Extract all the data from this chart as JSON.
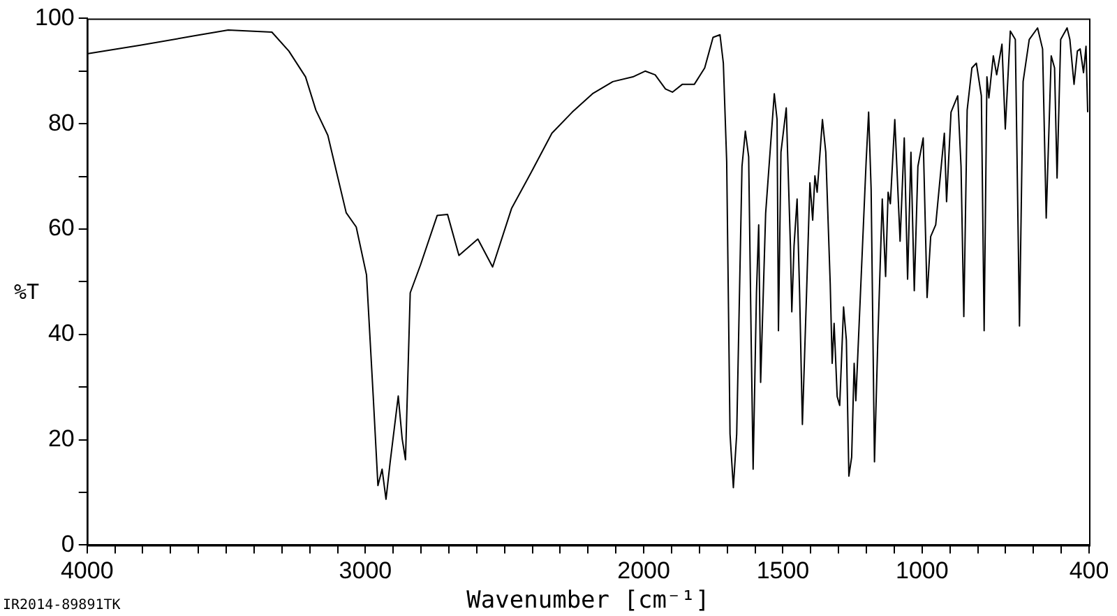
{
  "chart_data": {
    "type": "line",
    "xlabel": "Wavenumber [cm⁻¹]",
    "ylabel": "%T",
    "annotations": [
      "IR2014-89891TK"
    ],
    "xlim": [
      4000,
      400
    ],
    "xticks": [
      4000,
      {
        "value": 3900,
        "label": null
      },
      {
        "value": 3800,
        "label": null
      },
      {
        "value": 3700,
        "label": null
      },
      {
        "value": 3600,
        "label": null
      },
      {
        "value": 3500,
        "label": null
      },
      {
        "value": 3400,
        "label": null
      },
      {
        "value": 3300,
        "label": null
      },
      {
        "value": 3200,
        "label": null
      },
      {
        "value": 3100,
        "label": null
      },
      3000,
      {
        "value": 2900,
        "label": null
      },
      {
        "value": 2800,
        "label": null
      },
      {
        "value": 2700,
        "label": null
      },
      {
        "value": 2600,
        "label": null
      },
      {
        "value": 2500,
        "label": null
      },
      {
        "value": 2400,
        "label": null
      },
      {
        "value": 2300,
        "label": null
      },
      {
        "value": 2200,
        "label": null
      },
      {
        "value": 2100,
        "label": null
      },
      2000,
      {
        "value": 1900,
        "label": null
      },
      {
        "value": 1800,
        "label": null
      },
      {
        "value": 1700,
        "label": null
      },
      {
        "value": 1600,
        "label": null
      },
      1500,
      {
        "value": 1400,
        "label": null
      },
      {
        "value": 1300,
        "label": null
      },
      {
        "value": 1200,
        "label": null
      },
      {
        "value": 1100,
        "label": null
      },
      1000,
      {
        "value": 900,
        "label": null
      },
      {
        "value": 800,
        "label": null
      },
      {
        "value": 700,
        "label": null
      },
      {
        "value": 600,
        "label": null
      },
      {
        "value": 500,
        "label": null
      },
      400
    ],
    "ylim": [
      0,
      100
    ],
    "yticks": [
      0,
      {
        "value": 10,
        "label": null
      },
      20,
      {
        "value": 30,
        "label": null
      },
      40,
      {
        "value": 50,
        "label": null
      },
      60,
      {
        "value": 70,
        "label": null
      },
      80,
      {
        "value": 90,
        "label": null
      },
      100
    ],
    "grid": false,
    "legend": false,
    "marker": "none",
    "line_style": "solid",
    "series": [
      {
        "color": "#000000",
        "x": [
          4000,
          3809,
          3615,
          3493,
          3336,
          3275,
          3215,
          3178,
          3135,
          3105,
          3069,
          3033,
          2996,
          2972,
          2955,
          2940,
          2926,
          2911,
          2882,
          2868,
          2856,
          2839,
          2802,
          2742,
          2705,
          2664,
          2596,
          2543,
          2475,
          2402,
          2330,
          2257,
          2184,
          2111,
          2039,
          1995,
          1959,
          1922,
          1897,
          1861,
          1818,
          1781,
          1751,
          1726,
          1714,
          1702,
          1690,
          1678,
          1666,
          1647,
          1635,
          1623,
          1614,
          1607,
          1595,
          1587,
          1580,
          1562,
          1531,
          1521,
          1516,
          1507,
          1488,
          1473,
          1468,
          1460,
          1449,
          1440,
          1430,
          1415,
          1403,
          1393,
          1385,
          1377,
          1358,
          1346,
          1330,
          1323,
          1316,
          1305,
          1296,
          1282,
          1272,
          1263,
          1253,
          1244,
          1238,
          1201,
          1192,
          1183,
          1171,
          1159,
          1143,
          1131,
          1122,
          1114,
          1098,
          1079,
          1064,
          1052,
          1040,
          1028,
          1015,
          996,
          982,
          969,
          951,
          920,
          912,
          896,
          872,
          860,
          850,
          838,
          821,
          805,
          787,
          777,
          767,
          760,
          744,
          732,
          713,
          701,
          683,
          665,
          650,
          637,
          615,
          585,
          567,
          554,
          536,
          524,
          515,
          502,
          479,
          469,
          454,
          442,
          432,
          420,
          411,
          405
        ],
        "values": [
          93.3,
          94.9,
          96.7,
          97.8,
          97.4,
          93.8,
          88.9,
          82.6,
          77.8,
          71.1,
          63.1,
          60.4,
          51.3,
          28.3,
          11.3,
          14.4,
          8.7,
          15.8,
          28.3,
          20.2,
          16.2,
          47.9,
          53.2,
          62.6,
          62.8,
          55,
          58.1,
          52.8,
          63.9,
          71,
          78.2,
          82.2,
          85.7,
          88,
          88.9,
          90,
          89.3,
          86.6,
          86,
          87.5,
          87.5,
          90.6,
          96.4,
          96.9,
          91.5,
          72.8,
          21.1,
          10.9,
          21.1,
          71.9,
          78.6,
          73.7,
          38.9,
          14.4,
          47.9,
          60.8,
          30.9,
          63,
          85.7,
          80.8,
          40.7,
          74.6,
          83,
          56.8,
          44.3,
          56.8,
          65.7,
          47.9,
          22.9,
          47.9,
          68.8,
          61.7,
          70.1,
          67,
          80.8,
          74.6,
          49.6,
          34.5,
          42.1,
          28.2,
          26.5,
          45.2,
          38.9,
          13.1,
          16.7,
          34.5,
          27.4,
          72.8,
          82.2,
          67.5,
          15.8,
          38.9,
          65.7,
          51,
          67,
          64.8,
          80.8,
          57.7,
          77.3,
          50.5,
          74.6,
          48.3,
          71.9,
          77.3,
          47,
          58.6,
          60.8,
          78.2,
          65.2,
          82.2,
          85.3,
          71.9,
          43.4,
          82.6,
          90.6,
          91.5,
          85.3,
          40.7,
          88.9,
          84.9,
          92.9,
          89.3,
          95.1,
          79,
          97.6,
          96,
          41.6,
          88,
          96,
          98.2,
          94.2,
          62.1,
          92.9,
          90.6,
          69.7,
          96,
          98.2,
          96,
          87.5,
          93.8,
          94.2,
          89.7,
          94.7,
          82.2
        ]
      }
    ]
  }
}
